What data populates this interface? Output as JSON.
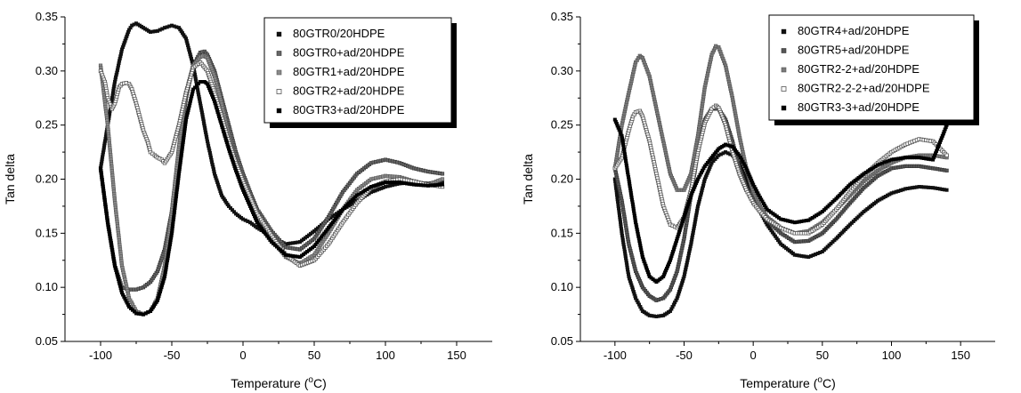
{
  "chart_data": [
    {
      "type": "scatter",
      "xlabel": "Temperature (°C)",
      "xlabel_main": "Temperature (",
      "xlabel_sup": "o",
      "xlabel_end": "C)",
      "ylabel": "Tan delta",
      "xlim": [
        -125,
        175
      ],
      "ylim": [
        0.05,
        0.35
      ],
      "xticks": [
        -100,
        -50,
        0,
        50,
        100,
        150
      ],
      "yticks": [
        0.05,
        0.1,
        0.15,
        0.2,
        0.25,
        0.3,
        0.35
      ],
      "xtick_labels": [
        "-100",
        "-50",
        "0",
        "50",
        "100",
        "150"
      ],
      "ytick_labels": [
        "0.05",
        "0.10",
        "0.15",
        "0.20",
        "0.25",
        "0.30",
        "0.35"
      ],
      "legend_position": "top-right",
      "series": [
        {
          "name": "80GTR0/20HDPE",
          "marker": "filled-square",
          "color": "#111111",
          "x": [
            -100,
            -95,
            -90,
            -85,
            -80,
            -78,
            -75,
            -70,
            -65,
            -60,
            -55,
            -50,
            -45,
            -40,
            -35,
            -30,
            -25,
            -20,
            -15,
            -10,
            -5,
            0,
            5,
            10,
            20,
            30,
            40,
            50,
            60,
            70,
            80,
            90,
            100,
            110,
            120,
            130,
            140
          ],
          "y": [
            0.21,
            0.25,
            0.29,
            0.32,
            0.338,
            0.342,
            0.344,
            0.34,
            0.336,
            0.337,
            0.34,
            0.342,
            0.34,
            0.33,
            0.305,
            0.27,
            0.235,
            0.205,
            0.185,
            0.175,
            0.168,
            0.163,
            0.16,
            0.155,
            0.147,
            0.14,
            0.142,
            0.152,
            0.163,
            0.172,
            0.18,
            0.188,
            0.193,
            0.196,
            0.197,
            0.196,
            0.198
          ]
        },
        {
          "name": "80GTR0+ad/20HDPE",
          "marker": "gray-square",
          "color": "#666666",
          "x": [
            -100,
            -95,
            -90,
            -85,
            -80,
            -75,
            -70,
            -65,
            -60,
            -55,
            -50,
            -45,
            -40,
            -35,
            -30,
            -27,
            -25,
            -20,
            -15,
            -10,
            -5,
            0,
            5,
            10,
            20,
            30,
            40,
            50,
            60,
            70,
            80,
            90,
            100,
            110,
            120,
            130,
            140
          ],
          "y": [
            0.21,
            0.16,
            0.12,
            0.1,
            0.098,
            0.098,
            0.1,
            0.105,
            0.115,
            0.135,
            0.17,
            0.225,
            0.275,
            0.305,
            0.317,
            0.318,
            0.315,
            0.3,
            0.275,
            0.25,
            0.225,
            0.205,
            0.188,
            0.172,
            0.152,
            0.137,
            0.135,
            0.145,
            0.165,
            0.188,
            0.205,
            0.215,
            0.218,
            0.215,
            0.21,
            0.207,
            0.205
          ]
        },
        {
          "name": "80GTR1+ad/20HDPE",
          "marker": "light-gray-square",
          "color": "#8a8a8a",
          "x": [
            -100,
            -95,
            -90,
            -85,
            -80,
            -75,
            -70,
            -65,
            -60,
            -55,
            -50,
            -45,
            -40,
            -35,
            -30,
            -27,
            -25,
            -20,
            -15,
            -10,
            -5,
            0,
            5,
            10,
            20,
            30,
            40,
            50,
            60,
            70,
            80,
            90,
            100,
            110,
            120,
            130,
            140
          ],
          "y": [
            0.305,
            0.25,
            0.18,
            0.12,
            0.09,
            0.078,
            0.075,
            0.078,
            0.09,
            0.12,
            0.17,
            0.23,
            0.28,
            0.305,
            0.313,
            0.314,
            0.312,
            0.295,
            0.27,
            0.24,
            0.215,
            0.195,
            0.18,
            0.165,
            0.145,
            0.128,
            0.122,
            0.13,
            0.15,
            0.172,
            0.19,
            0.2,
            0.203,
            0.202,
            0.198,
            0.195,
            0.2
          ]
        },
        {
          "name": "80GTR2+ad/20HDPE",
          "marker": "open-square",
          "color": "#555555",
          "x": [
            -100,
            -97,
            -95,
            -92,
            -90,
            -87,
            -85,
            -82,
            -80,
            -78,
            -75,
            -72,
            -70,
            -67,
            -65,
            -62,
            -60,
            -57,
            -55,
            -50,
            -45,
            -40,
            -35,
            -30,
            -25,
            -20,
            -15,
            -10,
            -5,
            0,
            5,
            10,
            20,
            30,
            40,
            50,
            60,
            70,
            80,
            90,
            100,
            110,
            120,
            130,
            140
          ],
          "y": [
            0.3,
            0.29,
            0.275,
            0.265,
            0.27,
            0.285,
            0.288,
            0.289,
            0.288,
            0.283,
            0.27,
            0.255,
            0.245,
            0.235,
            0.225,
            0.222,
            0.22,
            0.218,
            0.215,
            0.225,
            0.25,
            0.28,
            0.303,
            0.308,
            0.3,
            0.28,
            0.258,
            0.235,
            0.215,
            0.198,
            0.183,
            0.168,
            0.148,
            0.13,
            0.12,
            0.125,
            0.14,
            0.16,
            0.178,
            0.192,
            0.198,
            0.2,
            0.198,
            0.195,
            0.193
          ]
        },
        {
          "name": "80GTR3+ad/20HDPE",
          "marker": "filled-square",
          "color": "#000000",
          "x": [
            -100,
            -95,
            -90,
            -85,
            -80,
            -75,
            -70,
            -65,
            -60,
            -55,
            -50,
            -45,
            -40,
            -35,
            -30,
            -27,
            -25,
            -20,
            -15,
            -10,
            -5,
            0,
            5,
            10,
            20,
            30,
            40,
            50,
            60,
            70,
            80,
            90,
            100,
            110,
            120,
            130,
            140
          ],
          "y": [
            0.21,
            0.16,
            0.12,
            0.095,
            0.082,
            0.076,
            0.075,
            0.078,
            0.088,
            0.11,
            0.15,
            0.205,
            0.255,
            0.283,
            0.29,
            0.29,
            0.288,
            0.272,
            0.25,
            0.228,
            0.208,
            0.19,
            0.175,
            0.16,
            0.142,
            0.13,
            0.128,
            0.138,
            0.155,
            0.172,
            0.185,
            0.193,
            0.197,
            0.197,
            0.195,
            0.194,
            0.195
          ]
        }
      ]
    },
    {
      "type": "scatter",
      "xlabel": "Temperature (°C)",
      "xlabel_main": "Temperature (",
      "xlabel_sup": "o",
      "xlabel_end": "C)",
      "ylabel": "Tan delta",
      "xlim": [
        -125,
        175
      ],
      "ylim": [
        0.05,
        0.35
      ],
      "xticks": [
        -100,
        -50,
        0,
        50,
        100,
        150
      ],
      "yticks": [
        0.05,
        0.1,
        0.15,
        0.2,
        0.25,
        0.3,
        0.35
      ],
      "xtick_labels": [
        "-100",
        "-50",
        "0",
        "50",
        "100",
        "150"
      ],
      "ytick_labels": [
        "0.05",
        "0.10",
        "0.15",
        "0.20",
        "0.25",
        "0.30",
        "0.35"
      ],
      "legend_position": "top-right",
      "series": [
        {
          "name": "80GTR4+ad/20HDPE",
          "marker": "filled-square",
          "color": "#111111",
          "x": [
            -100,
            -95,
            -90,
            -85,
            -80,
            -75,
            -70,
            -65,
            -60,
            -55,
            -50,
            -45,
            -40,
            -35,
            -30,
            -25,
            -20,
            -15,
            -10,
            -5,
            0,
            5,
            10,
            20,
            30,
            40,
            50,
            60,
            70,
            80,
            90,
            100,
            110,
            120,
            130,
            140
          ],
          "y": [
            0.2,
            0.15,
            0.11,
            0.09,
            0.078,
            0.074,
            0.073,
            0.074,
            0.078,
            0.09,
            0.11,
            0.14,
            0.175,
            0.2,
            0.215,
            0.222,
            0.225,
            0.222,
            0.215,
            0.2,
            0.185,
            0.17,
            0.158,
            0.14,
            0.13,
            0.128,
            0.133,
            0.145,
            0.158,
            0.17,
            0.18,
            0.187,
            0.191,
            0.193,
            0.192,
            0.19
          ]
        },
        {
          "name": "80GTR5+ad/20HDPE",
          "marker": "gray-square",
          "color": "#555555",
          "x": [
            -100,
            -95,
            -90,
            -85,
            -80,
            -75,
            -70,
            -65,
            -60,
            -55,
            -50,
            -45,
            -40,
            -35,
            -30,
            -25,
            -20,
            -15,
            -10,
            -5,
            0,
            5,
            10,
            20,
            30,
            40,
            50,
            60,
            70,
            80,
            90,
            100,
            110,
            120,
            130,
            140
          ],
          "y": [
            0.21,
            0.18,
            0.14,
            0.115,
            0.1,
            0.092,
            0.088,
            0.09,
            0.098,
            0.115,
            0.145,
            0.185,
            0.225,
            0.255,
            0.265,
            0.265,
            0.255,
            0.235,
            0.21,
            0.192,
            0.18,
            0.17,
            0.162,
            0.15,
            0.142,
            0.143,
            0.15,
            0.163,
            0.178,
            0.192,
            0.203,
            0.21,
            0.212,
            0.212,
            0.21,
            0.208
          ]
        },
        {
          "name": "80GTR2-2+ad/20HDPE",
          "marker": "light-gray-square",
          "color": "#7a7a7a",
          "x": [
            -100,
            -95,
            -90,
            -85,
            -82,
            -80,
            -75,
            -70,
            -65,
            -60,
            -55,
            -50,
            -45,
            -40,
            -35,
            -30,
            -27,
            -25,
            -20,
            -15,
            -10,
            -5,
            0,
            5,
            10,
            20,
            30,
            40,
            50,
            60,
            70,
            80,
            90,
            100,
            110,
            120,
            130,
            140
          ],
          "y": [
            0.21,
            0.25,
            0.28,
            0.308,
            0.314,
            0.312,
            0.295,
            0.265,
            0.235,
            0.205,
            0.19,
            0.19,
            0.205,
            0.24,
            0.285,
            0.315,
            0.323,
            0.322,
            0.305,
            0.275,
            0.24,
            0.21,
            0.188,
            0.175,
            0.165,
            0.155,
            0.15,
            0.152,
            0.16,
            0.172,
            0.185,
            0.198,
            0.208,
            0.215,
            0.22,
            0.222,
            0.222,
            0.22
          ]
        },
        {
          "name": "80GTR2-2-2+ad/20HDPE",
          "marker": "open-square",
          "color": "#555555",
          "x": [
            -100,
            -95,
            -90,
            -87,
            -85,
            -82,
            -80,
            -75,
            -70,
            -65,
            -60,
            -55,
            -50,
            -45,
            -40,
            -35,
            -30,
            -27,
            -25,
            -20,
            -15,
            -10,
            -5,
            0,
            5,
            10,
            20,
            30,
            40,
            50,
            60,
            70,
            80,
            90,
            100,
            110,
            120,
            130,
            140
          ],
          "y": [
            0.21,
            0.22,
            0.245,
            0.258,
            0.262,
            0.263,
            0.258,
            0.235,
            0.205,
            0.175,
            0.158,
            0.155,
            0.165,
            0.19,
            0.225,
            0.252,
            0.265,
            0.268,
            0.266,
            0.25,
            0.225,
            0.205,
            0.19,
            0.178,
            0.17,
            0.163,
            0.155,
            0.15,
            0.15,
            0.158,
            0.172,
            0.188,
            0.203,
            0.215,
            0.225,
            0.232,
            0.237,
            0.235,
            0.222
          ]
        },
        {
          "name": "80GTR3-3+ad/20HDPE",
          "marker": "filled-square",
          "color": "#000000",
          "x": [
            -100,
            -95,
            -90,
            -85,
            -80,
            -75,
            -70,
            -65,
            -60,
            -55,
            -50,
            -45,
            -40,
            -35,
            -30,
            -25,
            -20,
            -15,
            -10,
            -5,
            0,
            5,
            10,
            20,
            30,
            40,
            50,
            60,
            70,
            80,
            90,
            100,
            110,
            120,
            130,
            140
          ],
          "y": [
            0.255,
            0.24,
            0.2,
            0.16,
            0.128,
            0.11,
            0.105,
            0.11,
            0.125,
            0.145,
            0.165,
            0.185,
            0.2,
            0.212,
            0.22,
            0.228,
            0.232,
            0.23,
            0.222,
            0.21,
            0.195,
            0.183,
            0.172,
            0.163,
            0.16,
            0.162,
            0.17,
            0.182,
            0.195,
            0.205,
            0.213,
            0.218,
            0.22,
            0.22,
            0.218,
            0.25
          ]
        }
      ]
    }
  ]
}
